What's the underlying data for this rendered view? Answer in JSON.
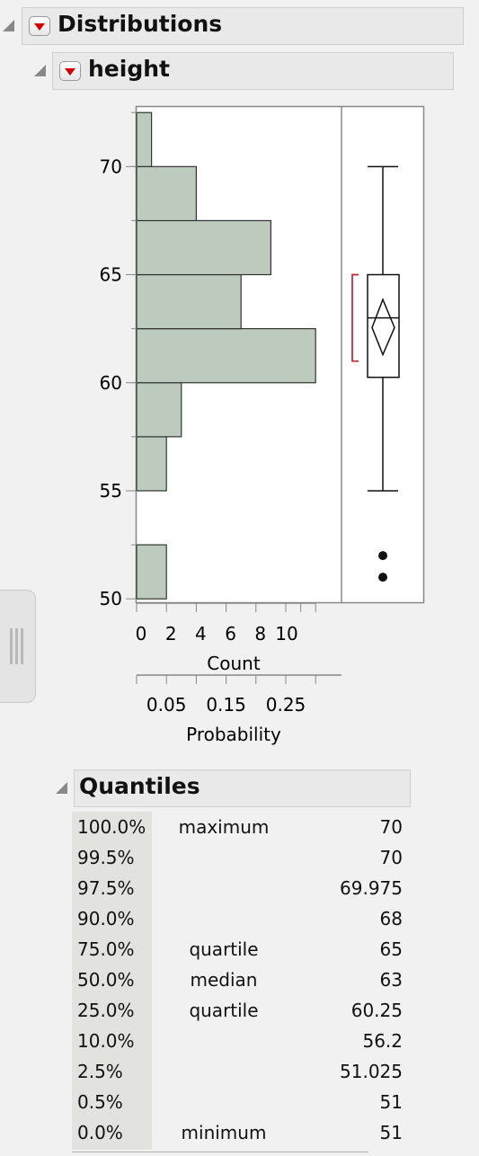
{
  "distributions_header": {
    "title": "Distributions"
  },
  "height_header": {
    "title": "height"
  },
  "chart_data": {
    "type": "bar",
    "orientation": "horizontal",
    "variable": "height",
    "bins": [
      {
        "from": 50,
        "to": 52.5,
        "count": 2
      },
      {
        "from": 52.5,
        "to": 55,
        "count": 0
      },
      {
        "from": 55,
        "to": 57.5,
        "count": 2
      },
      {
        "from": 57.5,
        "to": 60,
        "count": 3
      },
      {
        "from": 60,
        "to": 62.5,
        "count": 12
      },
      {
        "from": 62.5,
        "to": 65,
        "count": 7
      },
      {
        "from": 65,
        "to": 67.5,
        "count": 9
      },
      {
        "from": 67.5,
        "to": 70,
        "count": 4
      },
      {
        "from": 70,
        "to": 72.5,
        "count": 1
      }
    ],
    "y_ticks": [
      50,
      55,
      60,
      65,
      70
    ],
    "ylim": [
      49.8,
      72.8
    ],
    "count_ticks": [
      0,
      2,
      4,
      6,
      8,
      10
    ],
    "count_label": "Count",
    "probability_ticks": [
      "0.05",
      "0.15",
      "0.25"
    ],
    "probability_label": "Probability",
    "box_plot": {
      "whisker_low": 55,
      "q1": 60.25,
      "median": 63,
      "q3": 65,
      "whisker_high": 70,
      "mean": 62.55,
      "ci_low": 61.3,
      "ci_high": 63.85,
      "shortest_half": [
        61,
        65
      ],
      "outliers": [
        51,
        52
      ]
    }
  },
  "quantiles": {
    "title": "Quantiles",
    "rows": [
      {
        "pct": "100.0%",
        "label": "maximum",
        "value": "70"
      },
      {
        "pct": "99.5%",
        "label": "",
        "value": "70"
      },
      {
        "pct": "97.5%",
        "label": "",
        "value": "69.975"
      },
      {
        "pct": "90.0%",
        "label": "",
        "value": "68"
      },
      {
        "pct": "75.0%",
        "label": "quartile",
        "value": "65"
      },
      {
        "pct": "50.0%",
        "label": "median",
        "value": "63"
      },
      {
        "pct": "25.0%",
        "label": "quartile",
        "value": "60.25"
      },
      {
        "pct": "10.0%",
        "label": "",
        "value": "56.2"
      },
      {
        "pct": "2.5%",
        "label": "",
        "value": "51.025"
      },
      {
        "pct": "0.5%",
        "label": "",
        "value": "51"
      },
      {
        "pct": "0.0%",
        "label": "minimum",
        "value": "51"
      }
    ]
  },
  "colors": {
    "bar_fill": "#bccbbd",
    "bar_stroke": "#333333",
    "shortest_half": "#c0303a",
    "hotspot_arrow": "#d00000"
  }
}
